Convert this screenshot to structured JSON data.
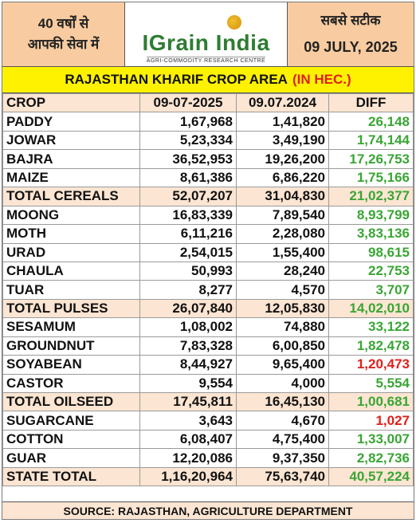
{
  "header": {
    "left_line1": "40 वर्षों से",
    "left_line2": "आपकी सेवा में",
    "logo_title": "IGrain India",
    "logo_subtitle": "AGRI-COMMODITY RESEARCH CENTRE",
    "right_line1": "सबसे सटीक",
    "date": "09 JULY, 2025"
  },
  "title": {
    "main": "RAJASTHAN KHARIF CROP AREA",
    "unit": "(IN HEC.)"
  },
  "columns": [
    "CROP",
    "09-07-2025",
    "09.07.2024",
    "DIFF"
  ],
  "rows": [
    {
      "crop": "PADDY",
      "y2025": "1,67,968",
      "y2024": "1,41,820",
      "diff": "26,148",
      "total": false
    },
    {
      "crop": "JOWAR",
      "y2025": "5,23,334",
      "y2024": "3,49,190",
      "diff": "1,74,144",
      "total": false
    },
    {
      "crop": "BAJRA",
      "y2025": "36,52,953",
      "y2024": "19,26,200",
      "diff": "17,26,753",
      "total": false
    },
    {
      "crop": "MAIZE",
      "y2025": "8,61,386",
      "y2024": "6,86,220",
      "diff": "1,75,166",
      "total": false
    },
    {
      "crop": "TOTAL CEREALS",
      "y2025": "52,07,207",
      "y2024": "31,04,830",
      "diff": "21,02,377",
      "total": true
    },
    {
      "crop": "MOONG",
      "y2025": "16,83,339",
      "y2024": "7,89,540",
      "diff": "8,93,799",
      "total": false
    },
    {
      "crop": "MOTH",
      "y2025": "6,11,216",
      "y2024": "2,28,080",
      "diff": "3,83,136",
      "total": false
    },
    {
      "crop": "URAD",
      "y2025": "2,54,015",
      "y2024": "1,55,400",
      "diff": "98,615",
      "total": false
    },
    {
      "crop": "CHAULA",
      "y2025": "50,993",
      "y2024": "28,240",
      "diff": "22,753",
      "total": false
    },
    {
      "crop": "TUAR",
      "y2025": "8,277",
      "y2024": "4,570",
      "diff": "3,707",
      "total": false
    },
    {
      "crop": "TOTAL PULSES",
      "y2025": "26,07,840",
      "y2024": "12,05,830",
      "diff": "14,02,010",
      "total": true
    },
    {
      "crop": "SESAMUM",
      "y2025": "1,08,002",
      "y2024": "74,880",
      "diff": "33,122",
      "total": false
    },
    {
      "crop": "GROUNDNUT",
      "y2025": "7,83,328",
      "y2024": "6,00,850",
      "diff": "1,82,478",
      "total": false
    },
    {
      "crop": "SOYABEAN",
      "y2025": "8,44,927",
      "y2024": "9,65,400",
      "diff": "1,20,473",
      "total": false,
      "negative": true
    },
    {
      "crop": "CASTOR",
      "y2025": "9,554",
      "y2024": "4,000",
      "diff": "5,554",
      "total": false
    },
    {
      "crop": "TOTAL OILSEED",
      "y2025": "17,45,811",
      "y2024": "16,45,130",
      "diff": "1,00,681",
      "total": true
    },
    {
      "crop": "SUGARCANE",
      "y2025": "3,643",
      "y2024": "4,670",
      "diff": "1,027",
      "total": false,
      "negative": true
    },
    {
      "crop": "COTTON",
      "y2025": "6,08,407",
      "y2024": "4,75,400",
      "diff": "1,33,007",
      "total": false
    },
    {
      "crop": "GUAR",
      "y2025": "12,20,086",
      "y2024": "9,37,350",
      "diff": "2,82,736",
      "total": false
    },
    {
      "crop": "STATE TOTAL",
      "y2025": "1,16,20,964",
      "y2024": "75,63,740",
      "diff": "40,57,224",
      "total": true
    }
  ],
  "footer": "SOURCE: RAJASTHAN, AGRICULTURE DEPARTMENT",
  "colors": {
    "positive": "#3aa535",
    "negative": "#e0201b",
    "header_bg": "#f8cba0",
    "title_bg": "#fff200",
    "total_bg": "#fce5d2"
  }
}
